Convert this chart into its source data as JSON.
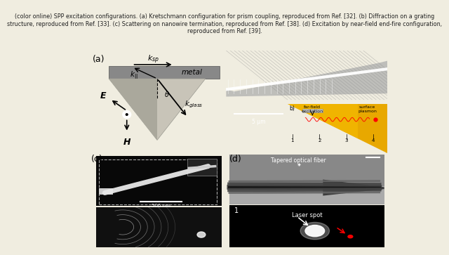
{
  "caption": "(color online) SPP excitation configurations. (a) Kretschmann configuration for prism coupling, reproduced from Ref. [32]. (b) Diffraction on a grating\nstructure, reproduced from Ref. [33]. (c) Scattering on nanowire termination, reproduced from Ref. [38]. (d) Excitation by near-field end-fire configuration,\nreproduced from Ref. [39].",
  "caption_fontsize": 5.8,
  "caption_color": "#222222",
  "bg_color": "#f0ede0",
  "panel_bg": "#e8e5d8",
  "panel_a": {
    "bg": "#d4d0c4",
    "metal_color": "#888888",
    "metal_dark": "#666666",
    "prism_light": "#c8c4b8",
    "prism_dark": "#aaa89c"
  },
  "panel_b_bg": "#000000",
  "panel_b_inset_bg": "#f0c020",
  "panel_c_upper_bg": "#080808",
  "panel_c_lower_bg": "#181818",
  "panel_d_upper_bg": "#aaaaaa",
  "panel_d_lower_bg": "#000000",
  "label_fontsize": 9
}
